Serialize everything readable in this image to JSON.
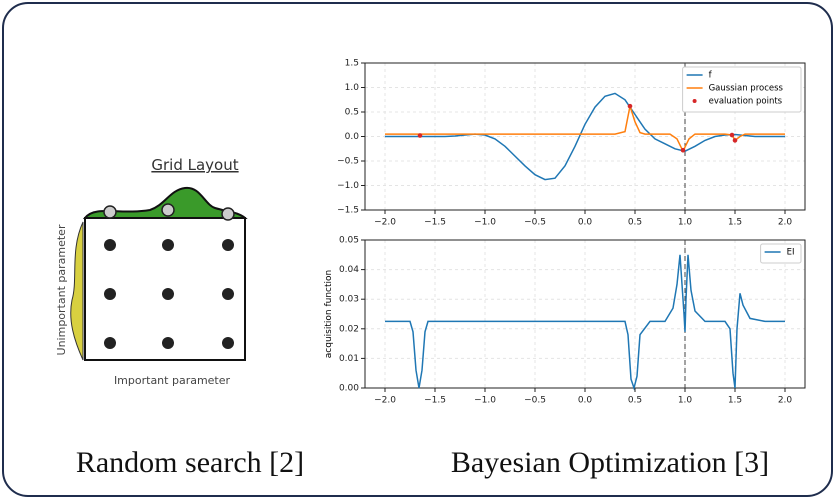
{
  "grid_figure": {
    "title": "Grid Layout",
    "x_label": "Important parameter",
    "y_label": "Unimportant parameter"
  },
  "captions": [
    "Random search [2]",
    "Bayesian Optimization [3]"
  ],
  "chart_data": [
    {
      "type": "line",
      "xlim": [
        -2.2,
        2.2
      ],
      "ylim": [
        -1.5,
        1.5
      ],
      "grid": true,
      "legend": "upper right",
      "vline": 1.0,
      "xticks": [
        {
          "value": -2.0,
          "label": "−2.0"
        },
        {
          "value": -1.5,
          "label": "−1.5"
        },
        {
          "value": -1.0,
          "label": "−1.0"
        },
        {
          "value": -0.5,
          "label": "−0.5"
        },
        {
          "value": 0,
          "label": "0.0"
        },
        0.5,
        {
          "value": 1,
          "label": "1.0"
        },
        1.5,
        {
          "value": 2,
          "label": "2.0"
        }
      ],
      "yticks": [
        {
          "value": -1.5,
          "label": "−1.5"
        },
        {
          "value": -1,
          "label": "−1.0"
        },
        {
          "value": -0.5,
          "label": "−0.5"
        },
        {
          "value": 0,
          "label": "0.0"
        },
        0.5,
        {
          "value": 1,
          "label": "1.0"
        },
        1.5
      ],
      "series": [
        {
          "name": "f",
          "color": "#1f77b4",
          "kind": "line",
          "x": [
            -2.0,
            -1.9,
            -1.8,
            -1.7,
            -1.6,
            -1.5,
            -1.4,
            -1.3,
            -1.2,
            -1.1,
            -1.0,
            -0.9,
            -0.8,
            -0.7,
            -0.6,
            -0.5,
            -0.4,
            -0.3,
            -0.2,
            -0.1,
            0.0,
            0.1,
            0.2,
            0.3,
            0.4,
            0.5,
            0.6,
            0.7,
            0.8,
            0.9,
            1.0,
            1.1,
            1.2,
            1.3,
            1.4,
            1.5,
            1.6,
            1.7,
            1.8,
            1.9,
            2.0
          ],
          "values": [
            0,
            0,
            0,
            0,
            0,
            0,
            0,
            0.01,
            0.03,
            0.05,
            0.03,
            -0.05,
            -0.2,
            -0.4,
            -0.6,
            -0.78,
            -0.88,
            -0.85,
            -0.6,
            -0.2,
            0.25,
            0.6,
            0.82,
            0.88,
            0.75,
            0.45,
            0.15,
            -0.05,
            -0.15,
            -0.25,
            -0.3,
            -0.2,
            -0.08,
            0,
            0.03,
            0.04,
            0.02,
            0,
            0,
            0,
            0
          ]
        },
        {
          "name": "Gaussian process",
          "color": "#ff7f0e",
          "kind": "line",
          "x": [
            -2.0,
            0.3,
            0.4,
            0.45,
            0.5,
            0.55,
            0.6,
            0.85,
            0.92,
            0.98,
            1.04,
            1.1,
            1.4,
            1.47,
            1.5,
            1.55,
            1.6,
            2.0
          ],
          "values": [
            0.05,
            0.05,
            0.1,
            0.62,
            0.3,
            0.08,
            0.05,
            0.05,
            -0.05,
            -0.3,
            -0.05,
            0.05,
            0.05,
            0.03,
            -0.08,
            0.0,
            0.05,
            0.05
          ]
        },
        {
          "name": "evaluation points",
          "color": "#d62728",
          "kind": "scatter",
          "x": [
            -1.65,
            0.45,
            0.98,
            1.47,
            1.5
          ],
          "values": [
            0.02,
            0.62,
            -0.28,
            0.03,
            -0.08
          ]
        }
      ]
    },
    {
      "type": "line",
      "xlim": [
        -2.2,
        2.2
      ],
      "ylim": [
        0,
        0.05
      ],
      "grid": true,
      "legend": "upper right",
      "vline": 1.0,
      "y_label": "acquisition function",
      "xticks": [
        {
          "value": -2.0,
          "label": "−2.0"
        },
        {
          "value": -1.5,
          "label": "−1.5"
        },
        {
          "value": -1.0,
          "label": "−1.0"
        },
        {
          "value": -0.5,
          "label": "−0.5"
        },
        {
          "value": 0,
          "label": "0.0"
        },
        0.5,
        {
          "value": 1,
          "label": "1.0"
        },
        1.5,
        {
          "value": 2,
          "label": "2.0"
        }
      ],
      "yticks": [
        {
          "value": 0,
          "label": "0.00"
        },
        0.01,
        0.02,
        0.03,
        0.04,
        0.05
      ],
      "series": [
        {
          "name": "EI",
          "color": "#1f77b4",
          "kind": "line",
          "x": [
            -2.0,
            -1.75,
            -1.72,
            -1.69,
            -1.66,
            -1.63,
            -1.6,
            -1.57,
            -1.5,
            0.3,
            0.4,
            0.43,
            0.46,
            0.49,
            0.52,
            0.55,
            0.65,
            0.8,
            0.88,
            0.92,
            0.95,
            0.97,
            0.99,
            1.0,
            1.01,
            1.03,
            1.06,
            1.1,
            1.2,
            1.4,
            1.45,
            1.48,
            1.5,
            1.52,
            1.55,
            1.58,
            1.65,
            1.8,
            2.0
          ],
          "values": [
            0.0225,
            0.0225,
            0.019,
            0.006,
            0,
            0.006,
            0.019,
            0.0225,
            0.0225,
            0.0225,
            0.0225,
            0.018,
            0.003,
            0,
            0.004,
            0.018,
            0.0225,
            0.0225,
            0.027,
            0.035,
            0.045,
            0.035,
            0.025,
            0.019,
            0.03,
            0.045,
            0.033,
            0.026,
            0.0225,
            0.0225,
            0.02,
            0.005,
            0,
            0.02,
            0.032,
            0.028,
            0.0235,
            0.0225,
            0.0225
          ]
        }
      ]
    }
  ]
}
